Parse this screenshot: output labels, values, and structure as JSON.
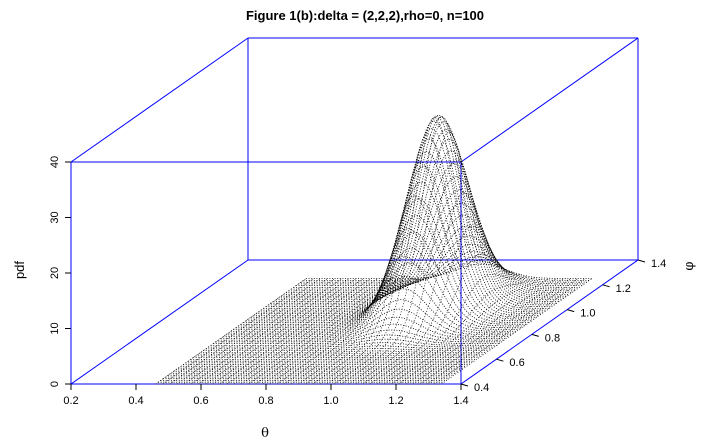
{
  "chart_data": {
    "type": "surface3d",
    "title": "Figure 1(b):delta = (2,2,2),rho=0, n=100",
    "xlabel": "θ",
    "ylabel": "φ",
    "zlabel": "pdf",
    "x_ticks": [
      "0.2",
      "0.4",
      "0.6",
      "0.8",
      "1.0",
      "1.2",
      "1.4"
    ],
    "y_ticks": [
      "0.4",
      "0.6",
      "0.8",
      "1.0",
      "1.2",
      "1.4"
    ],
    "z_ticks": [
      "0",
      "10",
      "20",
      "30",
      "40"
    ],
    "xlim": [
      0.2,
      1.4
    ],
    "ylim": [
      0.4,
      1.4
    ],
    "zlim": [
      0,
      40
    ],
    "x_range": [
      0.46,
      1.34
    ],
    "y_range": [
      0.4,
      1.25
    ],
    "peak": {
      "theta": 1.0,
      "phi": 1.0,
      "pdf": 35
    },
    "style": "dotted wireframe",
    "box_color": "#0000ff"
  }
}
